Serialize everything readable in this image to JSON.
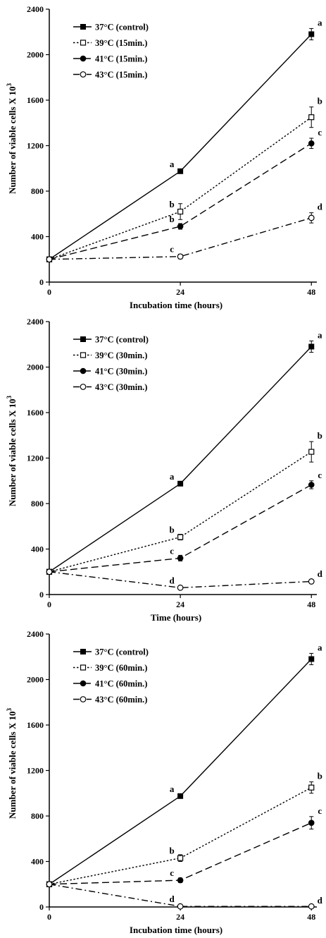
{
  "chart_data": [
    {
      "type": "line",
      "xlabel": "Incubation time (hours)",
      "ylabel": "Number of viable cells X 10",
      "ylabel_superscript": "3",
      "x": [
        0,
        24,
        48
      ],
      "x_ticks": [
        "0",
        "24",
        "48"
      ],
      "y_ticks": [
        "0",
        "400",
        "800",
        "1200",
        "1600",
        "2000",
        "2400"
      ],
      "ylim": [
        0,
        2400
      ],
      "xlim": [
        0,
        49
      ],
      "legend_position": "top-left",
      "series": [
        {
          "name": "37°C (control)",
          "values": [
            200,
            975,
            2180
          ],
          "errors": [
            0,
            15,
            50
          ],
          "marker": "filled-square",
          "line": "solid",
          "labels": [
            "",
            "a",
            "a"
          ]
        },
        {
          "name": "39°C (15min.)",
          "values": [
            200,
            620,
            1450
          ],
          "errors": [
            0,
            70,
            90
          ],
          "marker": "open-square",
          "line": "dotted",
          "labels": [
            "",
            "b",
            "b"
          ]
        },
        {
          "name": "41°C (15min.)",
          "values": [
            200,
            490,
            1220
          ],
          "errors": [
            0,
            25,
            45
          ],
          "marker": "filled-circle",
          "line": "dashed",
          "labels": [
            "",
            "b",
            "c"
          ]
        },
        {
          "name": "43°C (15min.)",
          "values": [
            200,
            225,
            565
          ],
          "errors": [
            0,
            20,
            45
          ],
          "marker": "open-circle",
          "line": "dash-dot",
          "labels": [
            "",
            "c",
            "d"
          ]
        }
      ]
    },
    {
      "type": "line",
      "xlabel": "Time (hours)",
      "ylabel": "Number of viable cells X 10",
      "ylabel_superscript": "3",
      "x": [
        0,
        24,
        48
      ],
      "x_ticks": [
        "0",
        "24",
        "48"
      ],
      "y_ticks": [
        "0",
        "400",
        "800",
        "1200",
        "1600",
        "2000",
        "2400"
      ],
      "ylim": [
        0,
        2400
      ],
      "xlim": [
        0,
        49
      ],
      "legend_position": "top-left",
      "series": [
        {
          "name": "37°C (control)",
          "values": [
            200,
            975,
            2180
          ],
          "errors": [
            0,
            15,
            50
          ],
          "marker": "filled-square",
          "line": "solid",
          "labels": [
            "",
            "a",
            "a"
          ]
        },
        {
          "name": "39°C (30min.)",
          "values": [
            200,
            505,
            1255
          ],
          "errors": [
            0,
            25,
            90
          ],
          "marker": "open-square",
          "line": "dotted",
          "labels": [
            "",
            "b",
            "b"
          ]
        },
        {
          "name": "41°C (30min.)",
          "values": [
            200,
            320,
            965
          ],
          "errors": [
            0,
            25,
            35
          ],
          "marker": "filled-circle",
          "line": "dashed",
          "labels": [
            "",
            "c",
            "c"
          ]
        },
        {
          "name": "43°C (30min.)",
          "values": [
            200,
            60,
            115
          ],
          "errors": [
            0,
            15,
            15
          ],
          "marker": "open-circle",
          "line": "dash-dot",
          "labels": [
            "",
            "d",
            "d"
          ]
        }
      ]
    },
    {
      "type": "line",
      "xlabel": "Incubation time (hours)",
      "ylabel": "Number of viable cells X 10",
      "ylabel_superscript": "3",
      "x": [
        0,
        24,
        48
      ],
      "x_ticks": [
        "0",
        "24",
        "48"
      ],
      "y_ticks": [
        "0",
        "400",
        "800",
        "1200",
        "1600",
        "2000",
        "2400"
      ],
      "ylim": [
        0,
        2400
      ],
      "xlim": [
        0,
        49
      ],
      "legend_position": "top-left",
      "series": [
        {
          "name": "37°C (control)",
          "values": [
            200,
            975,
            2180
          ],
          "errors": [
            0,
            15,
            50
          ],
          "marker": "filled-square",
          "line": "solid",
          "labels": [
            "",
            "a",
            "a"
          ]
        },
        {
          "name": "39°C (60min.)",
          "values": [
            200,
            430,
            1050
          ],
          "errors": [
            0,
            30,
            50
          ],
          "marker": "open-square",
          "line": "dotted",
          "labels": [
            "",
            "b",
            "b"
          ]
        },
        {
          "name": "41°C (60min.)",
          "values": [
            200,
            235,
            740
          ],
          "errors": [
            0,
            20,
            55
          ],
          "marker": "filled-circle",
          "line": "dashed",
          "labels": [
            "",
            "c",
            "c"
          ]
        },
        {
          "name": "43°C (60min.)",
          "values": [
            200,
            5,
            5
          ],
          "errors": [
            0,
            0,
            0
          ],
          "marker": "open-circle",
          "line": "dash-dot",
          "labels": [
            "",
            "d",
            "d"
          ]
        }
      ]
    }
  ]
}
